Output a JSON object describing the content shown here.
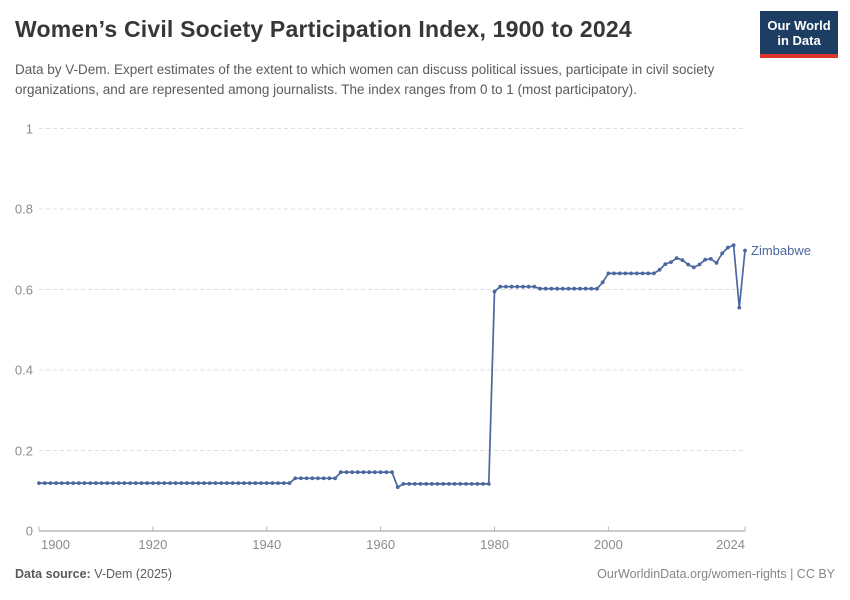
{
  "header": {
    "title": "Women’s Civil Society Participation Index, 1900 to 2024",
    "subtitle": "Data by V-Dem. Expert estimates of the extent to which women can discuss political issues, participate in civil society organizations, and are represented among journalists. The index ranges from 0 to 1 (most participatory).",
    "logo": {
      "line1": "Our World",
      "line2": "in Data"
    }
  },
  "footer": {
    "source_label": "Data source:",
    "source_value": " V-Dem (2025)",
    "credit": "OurWorldinData.org/women-rights | CC BY"
  },
  "colors": {
    "series_blue": "#4a679f",
    "logo_navy": "#1d3d63",
    "logo_red": "#dc352c",
    "grid_gray": "#e0e0e0",
    "axis_gray": "#999999",
    "text_gray": "#5b5b5b"
  },
  "chart_data": {
    "type": "line",
    "title": "Women's Civil Society Participation Index, 1900 to 2024",
    "xlabel": "",
    "ylabel": "",
    "xlim": [
      1900,
      2024
    ],
    "ylim": [
      0,
      1
    ],
    "x_ticks": [
      1900,
      1920,
      1940,
      1960,
      1980,
      2000,
      2024
    ],
    "y_ticks": [
      0,
      0.2,
      0.4,
      0.6,
      0.8,
      1
    ],
    "grid": "horizontal-dashed",
    "legend_position": "end-of-line-label",
    "entity_label": "Zimbabwe",
    "x_start": 1900,
    "series": [
      {
        "name": "Zimbabwe",
        "color": "#4a679f",
        "values": [
          0.119,
          0.119,
          0.119,
          0.119,
          0.119,
          0.119,
          0.119,
          0.119,
          0.119,
          0.119,
          0.119,
          0.119,
          0.119,
          0.119,
          0.119,
          0.119,
          0.119,
          0.119,
          0.119,
          0.119,
          0.119,
          0.119,
          0.119,
          0.119,
          0.119,
          0.119,
          0.119,
          0.119,
          0.119,
          0.119,
          0.119,
          0.119,
          0.119,
          0.119,
          0.119,
          0.119,
          0.119,
          0.119,
          0.119,
          0.119,
          0.119,
          0.119,
          0.119,
          0.119,
          0.119,
          0.131,
          0.131,
          0.131,
          0.131,
          0.131,
          0.131,
          0.131,
          0.131,
          0.146,
          0.146,
          0.146,
          0.146,
          0.146,
          0.146,
          0.146,
          0.146,
          0.146,
          0.146,
          0.109,
          0.117,
          0.117,
          0.117,
          0.117,
          0.117,
          0.117,
          0.117,
          0.117,
          0.117,
          0.117,
          0.117,
          0.117,
          0.117,
          0.117,
          0.117,
          0.117,
          0.595,
          0.607,
          0.607,
          0.607,
          0.607,
          0.607,
          0.607,
          0.607,
          0.602,
          0.602,
          0.602,
          0.602,
          0.602,
          0.602,
          0.602,
          0.602,
          0.602,
          0.602,
          0.602,
          0.618,
          0.64,
          0.64,
          0.64,
          0.64,
          0.64,
          0.64,
          0.64,
          0.64,
          0.64,
          0.649,
          0.663,
          0.668,
          0.678,
          0.673,
          0.662,
          0.655,
          0.662,
          0.674,
          0.676,
          0.666,
          0.69,
          0.704,
          0.71,
          0.555,
          0.697
        ]
      }
    ]
  }
}
